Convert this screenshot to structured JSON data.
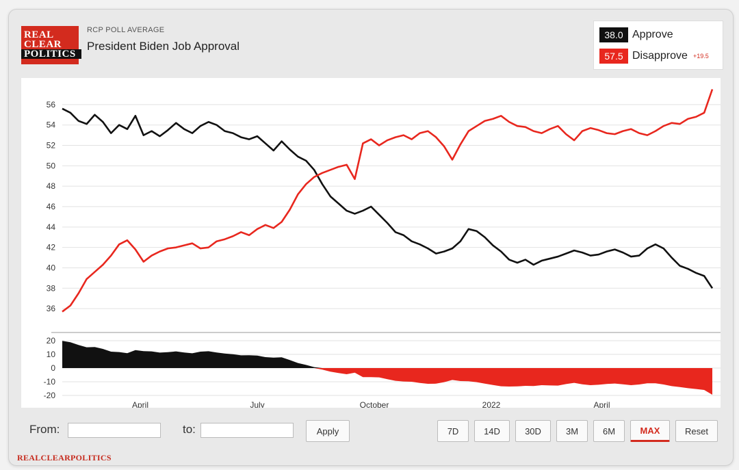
{
  "header": {
    "logo_lines": [
      "REAL",
      "CLEAR",
      "POLITICS"
    ],
    "kicker": "RCP POLL AVERAGE",
    "title": "President Biden Job Approval"
  },
  "legend": {
    "approve": {
      "value": "38.0",
      "label": "Approve",
      "color": "#111111"
    },
    "disapprove": {
      "value": "57.5",
      "label": "Disapprove",
      "color": "#e8271e",
      "spread": "+19.5"
    }
  },
  "chart_data": {
    "type": "line",
    "x_tick_labels": [
      "April",
      "July",
      "October",
      "2022",
      "April"
    ],
    "main_y_ticks": [
      56,
      54,
      52,
      50,
      48,
      46,
      44,
      42,
      40,
      38,
      36
    ],
    "main_ylim": [
      34.6,
      57.4
    ],
    "spread_y_ticks": [
      20,
      10,
      0,
      -10,
      -20
    ],
    "spread_ylim": [
      -22,
      22
    ],
    "series": [
      {
        "name": "Approve",
        "color": "#111111",
        "values": [
          55.6,
          55.2,
          54.4,
          54.1,
          55.0,
          54.3,
          53.2,
          54.0,
          53.6,
          54.9,
          53.0,
          53.4,
          52.9,
          53.5,
          54.2,
          53.6,
          53.2,
          53.9,
          54.3,
          54.0,
          53.4,
          53.2,
          52.8,
          52.6,
          52.9,
          52.2,
          51.5,
          52.4,
          51.6,
          50.9,
          50.5,
          49.6,
          48.2,
          47.0,
          46.3,
          45.6,
          45.3,
          45.6,
          46.0,
          45.2,
          44.4,
          43.5,
          43.2,
          42.6,
          42.3,
          41.9,
          41.4,
          41.6,
          41.9,
          42.6,
          43.8,
          43.6,
          43.0,
          42.2,
          41.6,
          40.8,
          40.5,
          40.8,
          40.3,
          40.7,
          40.9,
          41.1,
          41.4,
          41.7,
          41.5,
          41.2,
          41.3,
          41.6,
          41.8,
          41.5,
          41.1,
          41.2,
          41.9,
          42.3,
          41.9,
          41.0,
          40.2,
          39.9,
          39.5,
          39.2,
          38.0
        ]
      },
      {
        "name": "Disapprove",
        "color": "#e8271e",
        "values": [
          35.7,
          36.3,
          37.5,
          38.9,
          39.6,
          40.3,
          41.2,
          42.3,
          42.7,
          41.8,
          40.6,
          41.2,
          41.6,
          41.9,
          42.0,
          42.2,
          42.4,
          41.9,
          42.0,
          42.6,
          42.8,
          43.1,
          43.5,
          43.2,
          43.8,
          44.2,
          43.9,
          44.5,
          45.7,
          47.2,
          48.2,
          48.9,
          49.3,
          49.6,
          49.9,
          50.1,
          48.7,
          52.2,
          52.6,
          52.0,
          52.5,
          52.8,
          53.0,
          52.6,
          53.2,
          53.4,
          52.8,
          51.9,
          50.6,
          52.1,
          53.4,
          53.9,
          54.4,
          54.6,
          54.9,
          54.3,
          53.9,
          53.8,
          53.4,
          53.2,
          53.6,
          53.9,
          53.1,
          52.5,
          53.4,
          53.7,
          53.5,
          53.2,
          53.1,
          53.4,
          53.6,
          53.2,
          53.0,
          53.4,
          53.9,
          54.2,
          54.1,
          54.6,
          54.8,
          55.2,
          57.5
        ]
      },
      {
        "name": "Spread",
        "values": [
          19.9,
          18.9,
          16.9,
          15.2,
          15.4,
          14.0,
          12.0,
          11.7,
          10.9,
          13.1,
          12.4,
          12.2,
          11.3,
          11.6,
          12.2,
          11.4,
          10.8,
          12.0,
          12.3,
          11.4,
          10.6,
          10.1,
          9.3,
          9.4,
          9.1,
          8.0,
          7.6,
          7.9,
          5.9,
          3.7,
          2.3,
          0.7,
          -1.1,
          -2.6,
          -3.6,
          -4.5,
          -3.4,
          -6.6,
          -6.6,
          -6.8,
          -8.1,
          -9.3,
          -9.8,
          -10.0,
          -10.9,
          -11.5,
          -11.4,
          -10.3,
          -8.7,
          -9.5,
          -9.6,
          -10.3,
          -11.4,
          -12.4,
          -13.3,
          -13.5,
          -13.4,
          -13.0,
          -13.1,
          -12.5,
          -12.7,
          -12.8,
          -11.7,
          -10.8,
          -11.9,
          -12.5,
          -12.2,
          -11.6,
          -11.3,
          -11.9,
          -12.5,
          -12.0,
          -11.1,
          -11.1,
          -12.0,
          -13.2,
          -13.9,
          -14.7,
          -15.3,
          -16.0,
          -19.5
        ]
      }
    ]
  },
  "controls": {
    "from_label": "From:",
    "to_label": "to:",
    "apply_label": "Apply",
    "range_buttons": [
      "7D",
      "14D",
      "30D",
      "3M",
      "6M",
      "MAX",
      "Reset"
    ],
    "active_range": "MAX"
  },
  "footer": {
    "brand": "REALCLEARPOLITICS"
  }
}
